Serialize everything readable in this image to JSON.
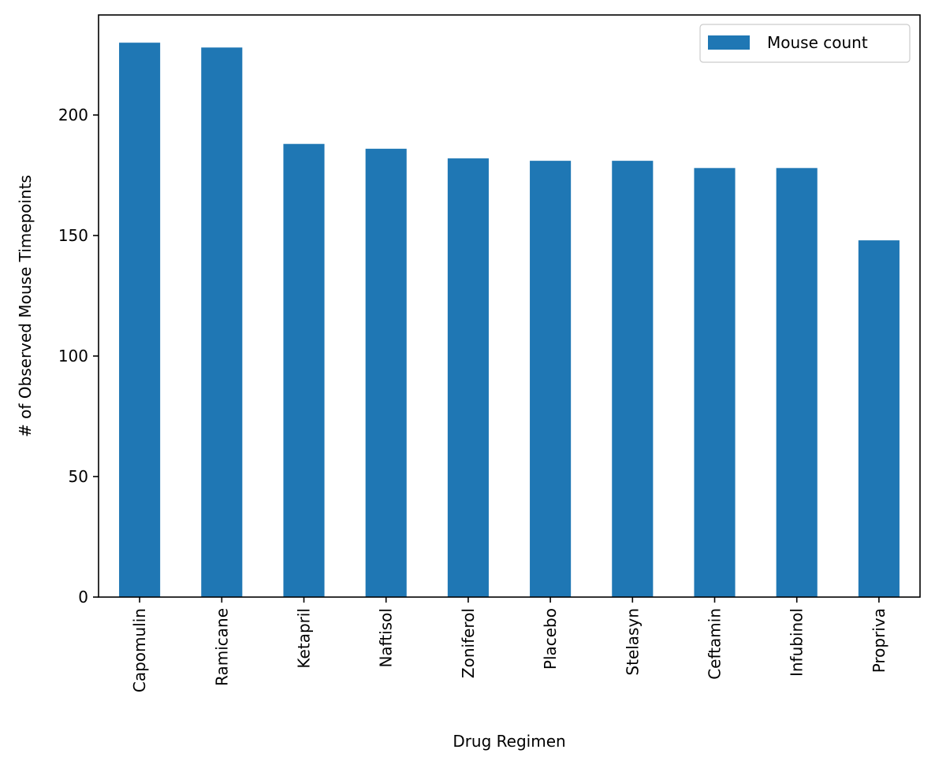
{
  "chart_data": {
    "type": "bar",
    "title": "",
    "xlabel": "Drug Regimen",
    "ylabel": "# of Observed Mouse Timepoints",
    "categories": [
      "Capomulin",
      "Ramicane",
      "Ketapril",
      "Naftisol",
      "Zoniferol",
      "Placebo",
      "Stelasyn",
      "Ceftamin",
      "Infubinol",
      "Propriva"
    ],
    "series": [
      {
        "name": "Mouse count",
        "values": [
          230,
          228,
          188,
          186,
          182,
          181,
          181,
          178,
          178,
          148
        ],
        "color": "#1f77b4"
      }
    ],
    "yticks": [
      0,
      50,
      100,
      150,
      200
    ],
    "ylim": [
      0,
      241.5
    ],
    "grid": false,
    "legend_position": "top-right"
  }
}
